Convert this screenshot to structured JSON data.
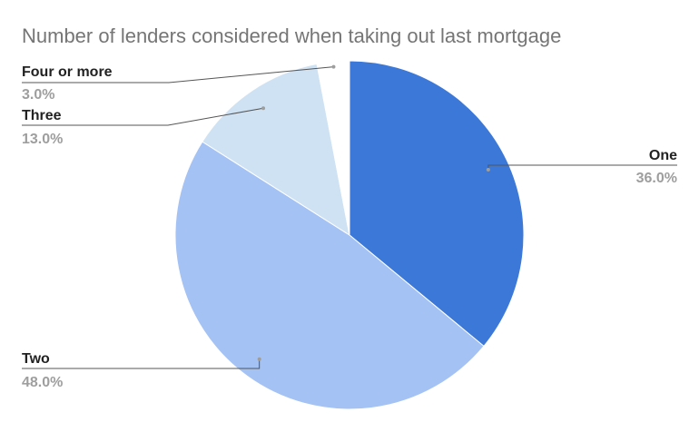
{
  "chart_data": {
    "type": "pie",
    "title": "Number of lenders considered when taking out last mortgage",
    "slices": [
      {
        "label": "One",
        "value": 36.0,
        "value_label": "36.0%",
        "color": "#3c78d8"
      },
      {
        "label": "Two",
        "value": 48.0,
        "value_label": "48.0%",
        "color": "#a4c2f4"
      },
      {
        "label": "Three",
        "value": 13.0,
        "value_label": "13.0%",
        "color": "#cfe2f3"
      },
      {
        "label": "Four or more",
        "value": 3.0,
        "value_label": "3.0%",
        "color": "#ffffff"
      }
    ],
    "start_angle_deg": 0,
    "direction": "clockwise",
    "legend": "none"
  }
}
